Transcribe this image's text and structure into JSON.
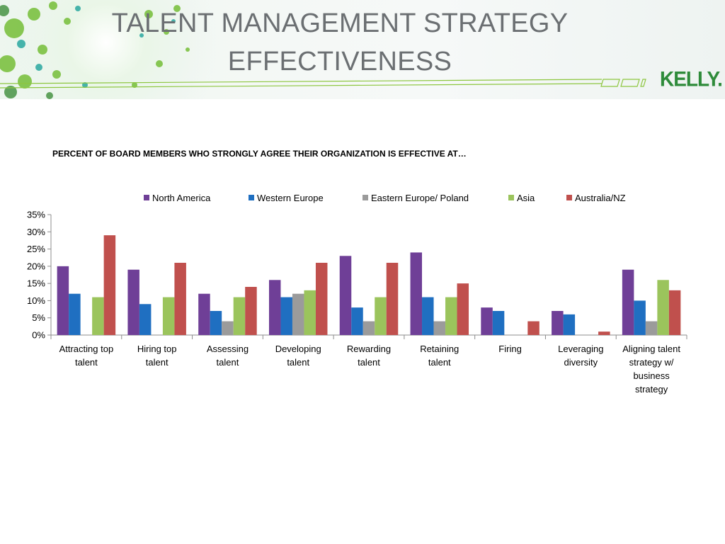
{
  "slide": {
    "title_line1": "TALENT MANAGEMENT STRATEGY",
    "title_line2": "EFFECTIVENESS",
    "logo_text": "KELLY."
  },
  "colors": {
    "title_gray": "#6b6f72",
    "brand_green": "#2e8b3a",
    "header_green": "#8dc63f"
  },
  "chart_data": {
    "type": "bar",
    "title": "PERCENT OF BOARD MEMBERS WHO STRONGLY AGREE THEIR ORGANIZATION IS EFFECTIVE AT…",
    "xlabel": "",
    "ylabel": "",
    "ylim": [
      0,
      35
    ],
    "y_ticks": [
      "0%",
      "5%",
      "10%",
      "15%",
      "20%",
      "25%",
      "30%",
      "35%"
    ],
    "y_tick_values": [
      0,
      5,
      10,
      15,
      20,
      25,
      30,
      35
    ],
    "legend_position": "top",
    "grid": false,
    "categories": [
      [
        "Attracting top",
        "talent"
      ],
      [
        "Hiring top",
        "talent"
      ],
      [
        "Assessing",
        "talent"
      ],
      [
        "Developing",
        "talent"
      ],
      [
        "Rewarding",
        "talent"
      ],
      [
        "Retaining",
        "talent"
      ],
      [
        "Firing"
      ],
      [
        "Leveraging",
        "diversity"
      ],
      [
        "Aligning talent",
        "strategy w/",
        "business",
        "strategy"
      ]
    ],
    "series": [
      {
        "name": "North America",
        "color": "#6f3f97",
        "values": [
          20,
          19,
          12,
          16,
          23,
          24,
          8,
          7,
          19
        ]
      },
      {
        "name": "Western Europe",
        "color": "#1f6fc1",
        "values": [
          12,
          9,
          7,
          11,
          8,
          11,
          7,
          6,
          10
        ]
      },
      {
        "name": "Eastern Europe/ Poland",
        "color": "#9b9b9b",
        "values": [
          0,
          0,
          4,
          12,
          4,
          4,
          0,
          0,
          4
        ]
      },
      {
        "name": "Asia",
        "color": "#9bc45c",
        "values": [
          11,
          11,
          11,
          13,
          11,
          11,
          0,
          0,
          16
        ]
      },
      {
        "name": "Australia/NZ",
        "color": "#c0504d",
        "values": [
          29,
          21,
          14,
          21,
          21,
          15,
          4,
          1,
          13
        ]
      }
    ]
  }
}
